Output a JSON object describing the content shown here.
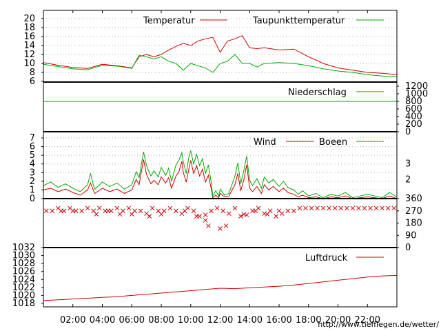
{
  "footer": {
    "url": "http://www.tiefflegen.de/wetter/"
  },
  "colors": {
    "red": "#cc0000",
    "green": "#00aa00"
  },
  "time_axis": {
    "labels": [
      "02:00",
      "04:00",
      "06:00",
      "08:00",
      "10:00",
      "12:00",
      "14:00",
      "16:00",
      "18:00",
      "20:00",
      "22:00"
    ],
    "range_hours": [
      0,
      24
    ]
  },
  "chart_data": [
    {
      "type": "line",
      "name": "temperature",
      "legend": [
        "Temperatur",
        "Taupunkttemperatur"
      ],
      "ylim": [
        6,
        20
      ],
      "yticks": [
        "6",
        "8",
        "10",
        "12",
        "14",
        "16",
        "18",
        "20"
      ],
      "grid": true,
      "legend_position": "top",
      "series": [
        {
          "name": "Temperatur",
          "color": "#cc0000",
          "x": [
            0,
            1,
            2,
            3,
            4,
            5,
            6,
            6.5,
            7,
            7.5,
            8,
            8.5,
            9,
            9.5,
            10,
            10.5,
            11,
            11.5,
            12,
            12.5,
            13,
            13.5,
            14,
            14.5,
            15,
            16,
            17,
            18,
            19,
            20,
            21,
            22,
            23,
            24
          ],
          "y": [
            10.2,
            9.6,
            9.1,
            8.9,
            9.8,
            9.5,
            9,
            11.5,
            12,
            11.5,
            12,
            13,
            13.8,
            14.5,
            14,
            15,
            15.5,
            15.8,
            12.5,
            15,
            15.5,
            16.2,
            13.5,
            13.3,
            13.5,
            13,
            13.2,
            11.5,
            10,
            9,
            8.5,
            8,
            7.8,
            7.5
          ]
        },
        {
          "name": "Taupunkttemperatur",
          "color": "#00aa00",
          "x": [
            0,
            1,
            2,
            3,
            4,
            5,
            6,
            6.5,
            7,
            7.5,
            8,
            8.5,
            9,
            9.5,
            10,
            10.5,
            11,
            11.5,
            12,
            12.5,
            13,
            13.5,
            14,
            14.5,
            15,
            16,
            17,
            18,
            19,
            20,
            21,
            22,
            23,
            24
          ],
          "y": [
            9.8,
            9.3,
            8.8,
            8.6,
            9.6,
            9.4,
            8.9,
            11.8,
            11.5,
            11,
            11.5,
            10.5,
            10,
            8.5,
            10,
            9.5,
            9,
            8,
            10,
            10.5,
            12,
            10,
            10,
            9.2,
            10,
            10.2,
            10,
            9.5,
            8.8,
            8.3,
            8,
            7.5,
            7.2,
            7
          ]
        }
      ]
    },
    {
      "type": "line",
      "name": "precipitation",
      "legend": [
        "Niederschlag"
      ],
      "ylim": [
        0,
        1200
      ],
      "yticks": [
        "0",
        "200",
        "400",
        "600",
        "800",
        "1000",
        "1200"
      ],
      "grid": false,
      "legend_position": "top",
      "series": [
        {
          "name": "Niederschlag",
          "color": "#00aa00",
          "x": [
            0,
            24
          ],
          "y": [
            800,
            800
          ]
        }
      ]
    },
    {
      "type": "line",
      "name": "wind",
      "legend": [
        "Wind",
        "Boeen"
      ],
      "ylim": [
        0,
        7
      ],
      "yticks": [
        "0",
        "1",
        "2",
        "3",
        "4",
        "5",
        "6",
        "7"
      ],
      "right_ticks": [
        {
          "label": "2",
          "value": 2.2
        },
        {
          "label": "3",
          "value": 4
        }
      ],
      "grid": true,
      "legend_position": "top",
      "series": [
        {
          "name": "Wind",
          "color": "#cc0000",
          "x": [
            0,
            0.5,
            1,
            1.5,
            2,
            2.5,
            3,
            3.2,
            3.4,
            3.5,
            4,
            4.5,
            5,
            5.5,
            6,
            6.3,
            6.5,
            6.8,
            7,
            7.3,
            7.5,
            7.8,
            8,
            8.3,
            8.5,
            8.7,
            9,
            9.2,
            9.4,
            9.5,
            9.7,
            9.9,
            10,
            10.2,
            10.4,
            10.6,
            10.8,
            11,
            11.2,
            11.4,
            11.5,
            11.7,
            11.9,
            12,
            12.3,
            12.6,
            13,
            13.2,
            13.4,
            13.6,
            13.8,
            14,
            14.2,
            14.5,
            14.8,
            15,
            15.3,
            15.6,
            16,
            16.3,
            16.6,
            17,
            17.3,
            17.6,
            18,
            18.5,
            19,
            19.5,
            20,
            20.5,
            21,
            21.5,
            22,
            22.5,
            23,
            23.5,
            24
          ],
          "y": [
            1,
            1.2,
            0.8,
            1.1,
            0.7,
            0.4,
            1,
            1.8,
            0.9,
            0.6,
            1.2,
            0.8,
            1.1,
            0.6,
            1,
            2.2,
            1.6,
            4.5,
            2.8,
            1.7,
            2.1,
            1.6,
            2.5,
            1.8,
            2.4,
            1.2,
            2.6,
            3.1,
            4.3,
            3,
            1.9,
            3.6,
            4.4,
            2.9,
            3.8,
            2.6,
            3.4,
            1.9,
            2.7,
            1.1,
            0.1,
            0.4,
            0.1,
            0.6,
            0.2,
            0.3,
            1.6,
            2.9,
            0.9,
            2.1,
            3.9,
            1.2,
            0.8,
            1.4,
            0.6,
            1.6,
            1,
            1.4,
            0.8,
            1.2,
            0.7,
            0.5,
            0.2,
            0.4,
            0.1,
            0.2,
            0,
            0.2,
            0.1,
            0.3,
            0,
            0.1,
            0.2,
            0.1,
            0,
            0.3,
            0
          ]
        },
        {
          "name": "Boeen",
          "color": "#00aa00",
          "x": [
            0,
            0.5,
            1,
            1.5,
            2,
            2.5,
            3,
            3.2,
            3.4,
            3.5,
            4,
            4.5,
            5,
            5.5,
            6,
            6.3,
            6.5,
            6.8,
            7,
            7.3,
            7.5,
            7.8,
            8,
            8.3,
            8.5,
            8.7,
            9,
            9.2,
            9.4,
            9.5,
            9.7,
            9.9,
            10,
            10.2,
            10.4,
            10.6,
            10.8,
            11,
            11.2,
            11.4,
            11.5,
            11.7,
            11.9,
            12,
            12.3,
            12.6,
            13,
            13.2,
            13.4,
            13.6,
            13.8,
            14,
            14.2,
            14.5,
            14.8,
            15,
            15.3,
            15.6,
            16,
            16.3,
            16.6,
            17,
            17.3,
            17.6,
            18,
            18.5,
            19,
            19.5,
            20,
            20.5,
            21,
            21.5,
            22,
            22.5,
            23,
            23.5,
            24
          ],
          "y": [
            1.5,
            1.9,
            1.3,
            1.7,
            1.2,
            0.8,
            1.6,
            2.9,
            1.5,
            1.1,
            1.9,
            1.4,
            1.8,
            1.1,
            1.6,
            3.1,
            2.4,
            5.4,
            3.8,
            2.6,
            3.2,
            2.5,
            3.6,
            2.7,
            3.5,
            2,
            3.9,
            4.4,
            5.3,
            4.2,
            2.9,
            5,
            5.5,
            4,
            5.1,
            3.8,
            4.6,
            2.9,
            3.9,
            1.8,
            0.3,
            0.9,
            0.3,
            1.1,
            0.4,
            0.6,
            2.6,
            4.1,
            1.7,
            3.2,
            4.9,
            2.1,
            1.5,
            2.3,
            1.2,
            2.5,
            1.8,
            2.2,
            1.4,
            2,
            1.3,
            1,
            0.5,
            0.9,
            0.3,
            0.6,
            0.1,
            0.5,
            0.3,
            0.7,
            0.1,
            0.3,
            0.5,
            0.3,
            0.1,
            0.7,
            0.2
          ]
        }
      ]
    },
    {
      "type": "scatter",
      "name": "wind-direction",
      "ylim": [
        0,
        360
      ],
      "yticks": [
        "0",
        "90",
        "180",
        "270",
        "360"
      ],
      "grid": false,
      "series": [
        {
          "name": "Wind",
          "color": "#cc0000",
          "marker": "x",
          "x": [
            0.2,
            0.6,
            1,
            1.4,
            1.8,
            2.2,
            2.6,
            3,
            3.4,
            3.8,
            4.2,
            4.6,
            5,
            5.4,
            5.8,
            6.2,
            6.6,
            7,
            7.4,
            7.8,
            8.2,
            8.6,
            9,
            9.4,
            9.8,
            10.2,
            10.6,
            11,
            11.4,
            11.8,
            12.2,
            12.6,
            13,
            13.4,
            13.8,
            14.2,
            14.6,
            15,
            15.4,
            15.8,
            16.2,
            16.6,
            17,
            17.4,
            17.8,
            18.2,
            18.6,
            19,
            19.4,
            19.8,
            20.2,
            20.6,
            21,
            21.4,
            21.8,
            22.2,
            22.6,
            23,
            23.4,
            23.8,
            1.2,
            2,
            3.6,
            4.4,
            5.2,
            6,
            7.2,
            8,
            9.6,
            10.4,
            11.2,
            12,
            13.6,
            14.4,
            15.2,
            16,
            11,
            12.4
          ],
          "y": [
            270,
            270,
            290,
            270,
            290,
            270,
            270,
            290,
            270,
            290,
            270,
            270,
            290,
            270,
            290,
            270,
            270,
            250,
            290,
            270,
            270,
            290,
            270,
            250,
            290,
            270,
            230,
            200,
            270,
            290,
            270,
            250,
            290,
            230,
            240,
            270,
            290,
            250,
            270,
            230,
            250,
            270,
            270,
            290,
            290,
            290,
            290,
            290,
            290,
            290,
            290,
            290,
            290,
            290,
            290,
            290,
            290,
            290,
            290,
            290,
            270,
            270,
            245,
            270,
            245,
            245,
            230,
            245,
            270,
            230,
            160,
            140,
            245,
            270,
            245,
            270,
            240,
            160
          ]
        }
      ]
    },
    {
      "type": "line",
      "name": "pressure",
      "legend": [
        "Luftdruck"
      ],
      "ylim": [
        1018,
        1032
      ],
      "yticks": [
        "1018",
        "1020",
        "1022",
        "1024",
        "1026",
        "1028",
        "1030",
        "1032"
      ],
      "grid": false,
      "legend_position": "top",
      "series": [
        {
          "name": "Luftdruck",
          "color": "#cc0000",
          "x": [
            0,
            1,
            2,
            3,
            4,
            5,
            6,
            7,
            8,
            9,
            10,
            11,
            12,
            13,
            14,
            15,
            16,
            17,
            18,
            19,
            20,
            21,
            22,
            23,
            24
          ],
          "y": [
            1018.7,
            1018.9,
            1019.1,
            1019.3,
            1019.5,
            1019.7,
            1020,
            1020.3,
            1020.6,
            1020.9,
            1021.2,
            1021.5,
            1021.8,
            1021.7,
            1021.9,
            1022.1,
            1022.3,
            1022.6,
            1023,
            1023.4,
            1023.8,
            1024.2,
            1024.6,
            1024.9,
            1025
          ]
        }
      ]
    }
  ]
}
